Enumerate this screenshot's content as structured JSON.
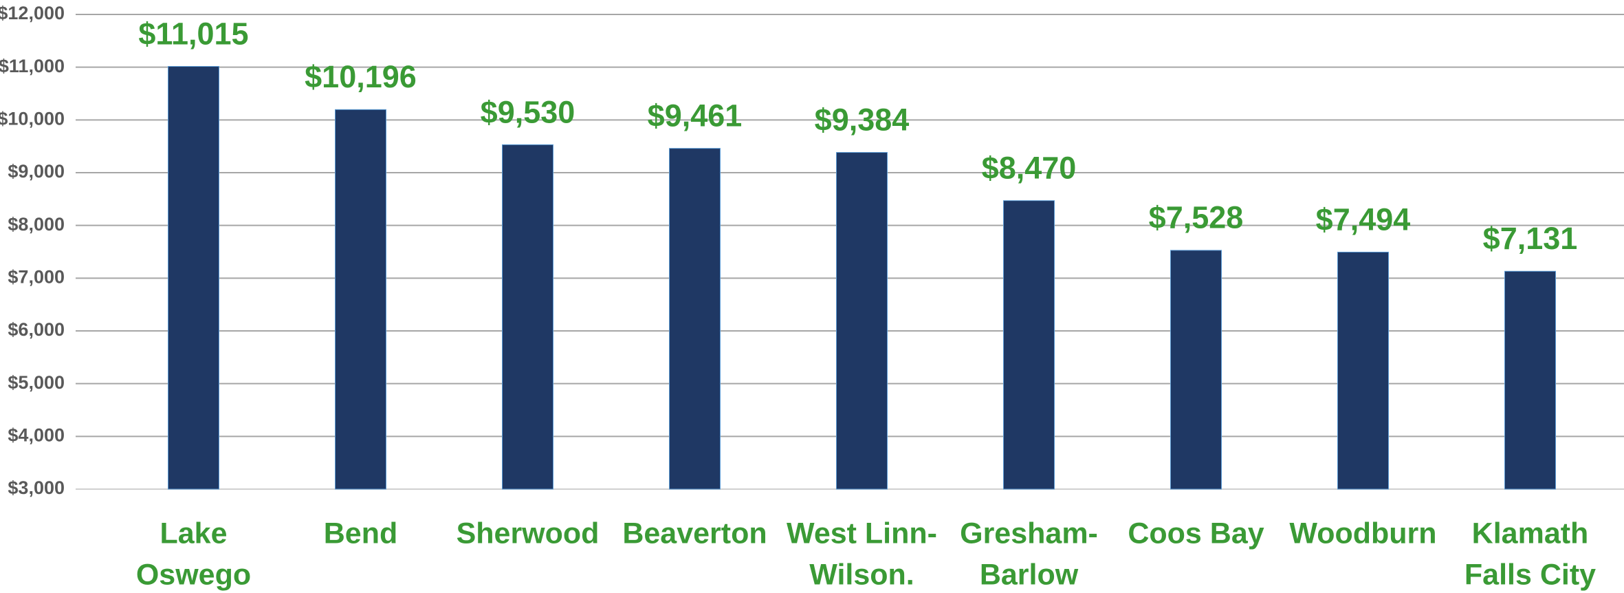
{
  "chart_data": {
    "type": "bar",
    "categories": [
      [
        "Lake",
        "Oswego"
      ],
      [
        "Bend"
      ],
      [
        "Sherwood"
      ],
      [
        "Beaverton"
      ],
      [
        "West Linn-",
        "Wilson."
      ],
      [
        "Gresham-",
        "Barlow"
      ],
      [
        "Coos Bay"
      ],
      [
        "Woodburn"
      ],
      [
        "Klamath",
        "Falls City"
      ]
    ],
    "values": [
      11015,
      10196,
      9530,
      9461,
      9384,
      8470,
      7528,
      7494,
      7131
    ],
    "value_labels": [
      "$11,015",
      "$10,196",
      "$9,530",
      "$9,461",
      "$9,384",
      "$8,470",
      "$7,528",
      "$7,494",
      "$7,131"
    ],
    "color": "#1f3864",
    "label_color": "#3a9a35",
    "ylim": [
      3000,
      12000
    ],
    "yticks": [
      {
        "value": 3000,
        "label": "$3,000"
      },
      {
        "value": 4000,
        "label": "$4,000"
      },
      {
        "value": 5000,
        "label": "$5,000"
      },
      {
        "value": 6000,
        "label": "$6,000"
      },
      {
        "value": 7000,
        "label": "$7,000"
      },
      {
        "value": 8000,
        "label": "$8,000"
      },
      {
        "value": 9000,
        "label": "$9,000"
      },
      {
        "value": 10000,
        "label": "$10,000"
      },
      {
        "value": 11000,
        "label": "$11,000"
      },
      {
        "value": 12000,
        "label": "$12,000"
      }
    ],
    "grid": true
  }
}
